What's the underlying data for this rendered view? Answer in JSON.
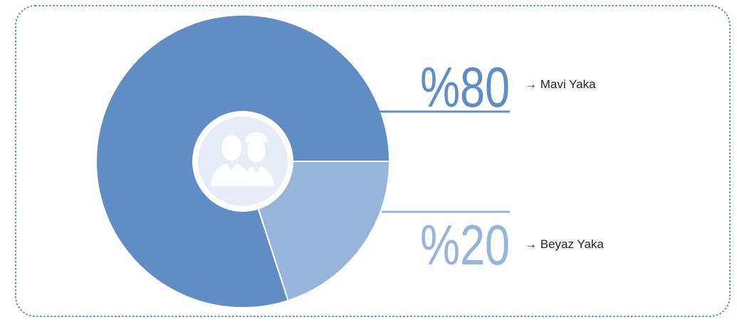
{
  "chart_data": {
    "type": "pie",
    "categories": [
      "→ Mavi Yaka",
      "→ Beyaz Yaka"
    ],
    "values": [
      80,
      20
    ],
    "value_labels": [
      "%80",
      "%20"
    ],
    "colors": [
      "#5f8dc4",
      "#97b4da"
    ]
  }
}
